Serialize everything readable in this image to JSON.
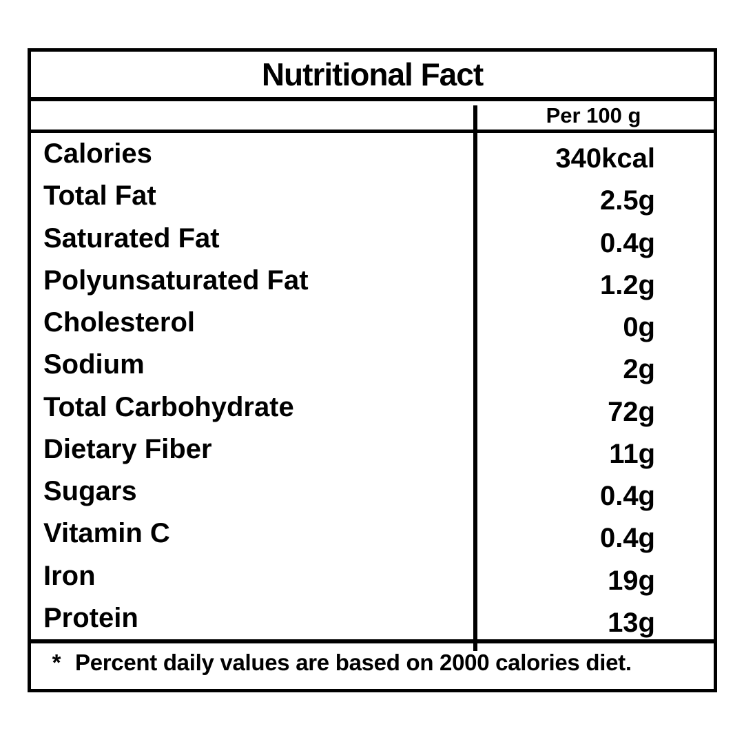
{
  "label": {
    "title": "Nutritional Fact",
    "column_header": "Per 100 g",
    "rows": [
      {
        "name": "Calories",
        "value": "340kcal"
      },
      {
        "name": "Total Fat",
        "value": "2.5g"
      },
      {
        "name": "Saturated Fat",
        "value": "0.4g"
      },
      {
        "name": "Polyunsaturated Fat",
        "value": "1.2g"
      },
      {
        "name": "Cholesterol",
        "value": "0g"
      },
      {
        "name": "Sodium",
        "value": "2g"
      },
      {
        "name": "Total Carbohydrate",
        "value": "72g"
      },
      {
        "name": "Dietary Fiber",
        "value": "11g"
      },
      {
        "name": "Sugars",
        "value": "0.4g"
      },
      {
        "name": "Vitamin C",
        "value": "0.4g"
      },
      {
        "name": "Iron",
        "value": "19g"
      },
      {
        "name": "Protein",
        "value": "13g"
      }
    ],
    "footnote": {
      "marker": "*",
      "text": "Percent daily values are based on 2000 calories diet."
    },
    "colors": {
      "border": "#000000",
      "text": "#000000",
      "background": "#ffffff"
    }
  }
}
